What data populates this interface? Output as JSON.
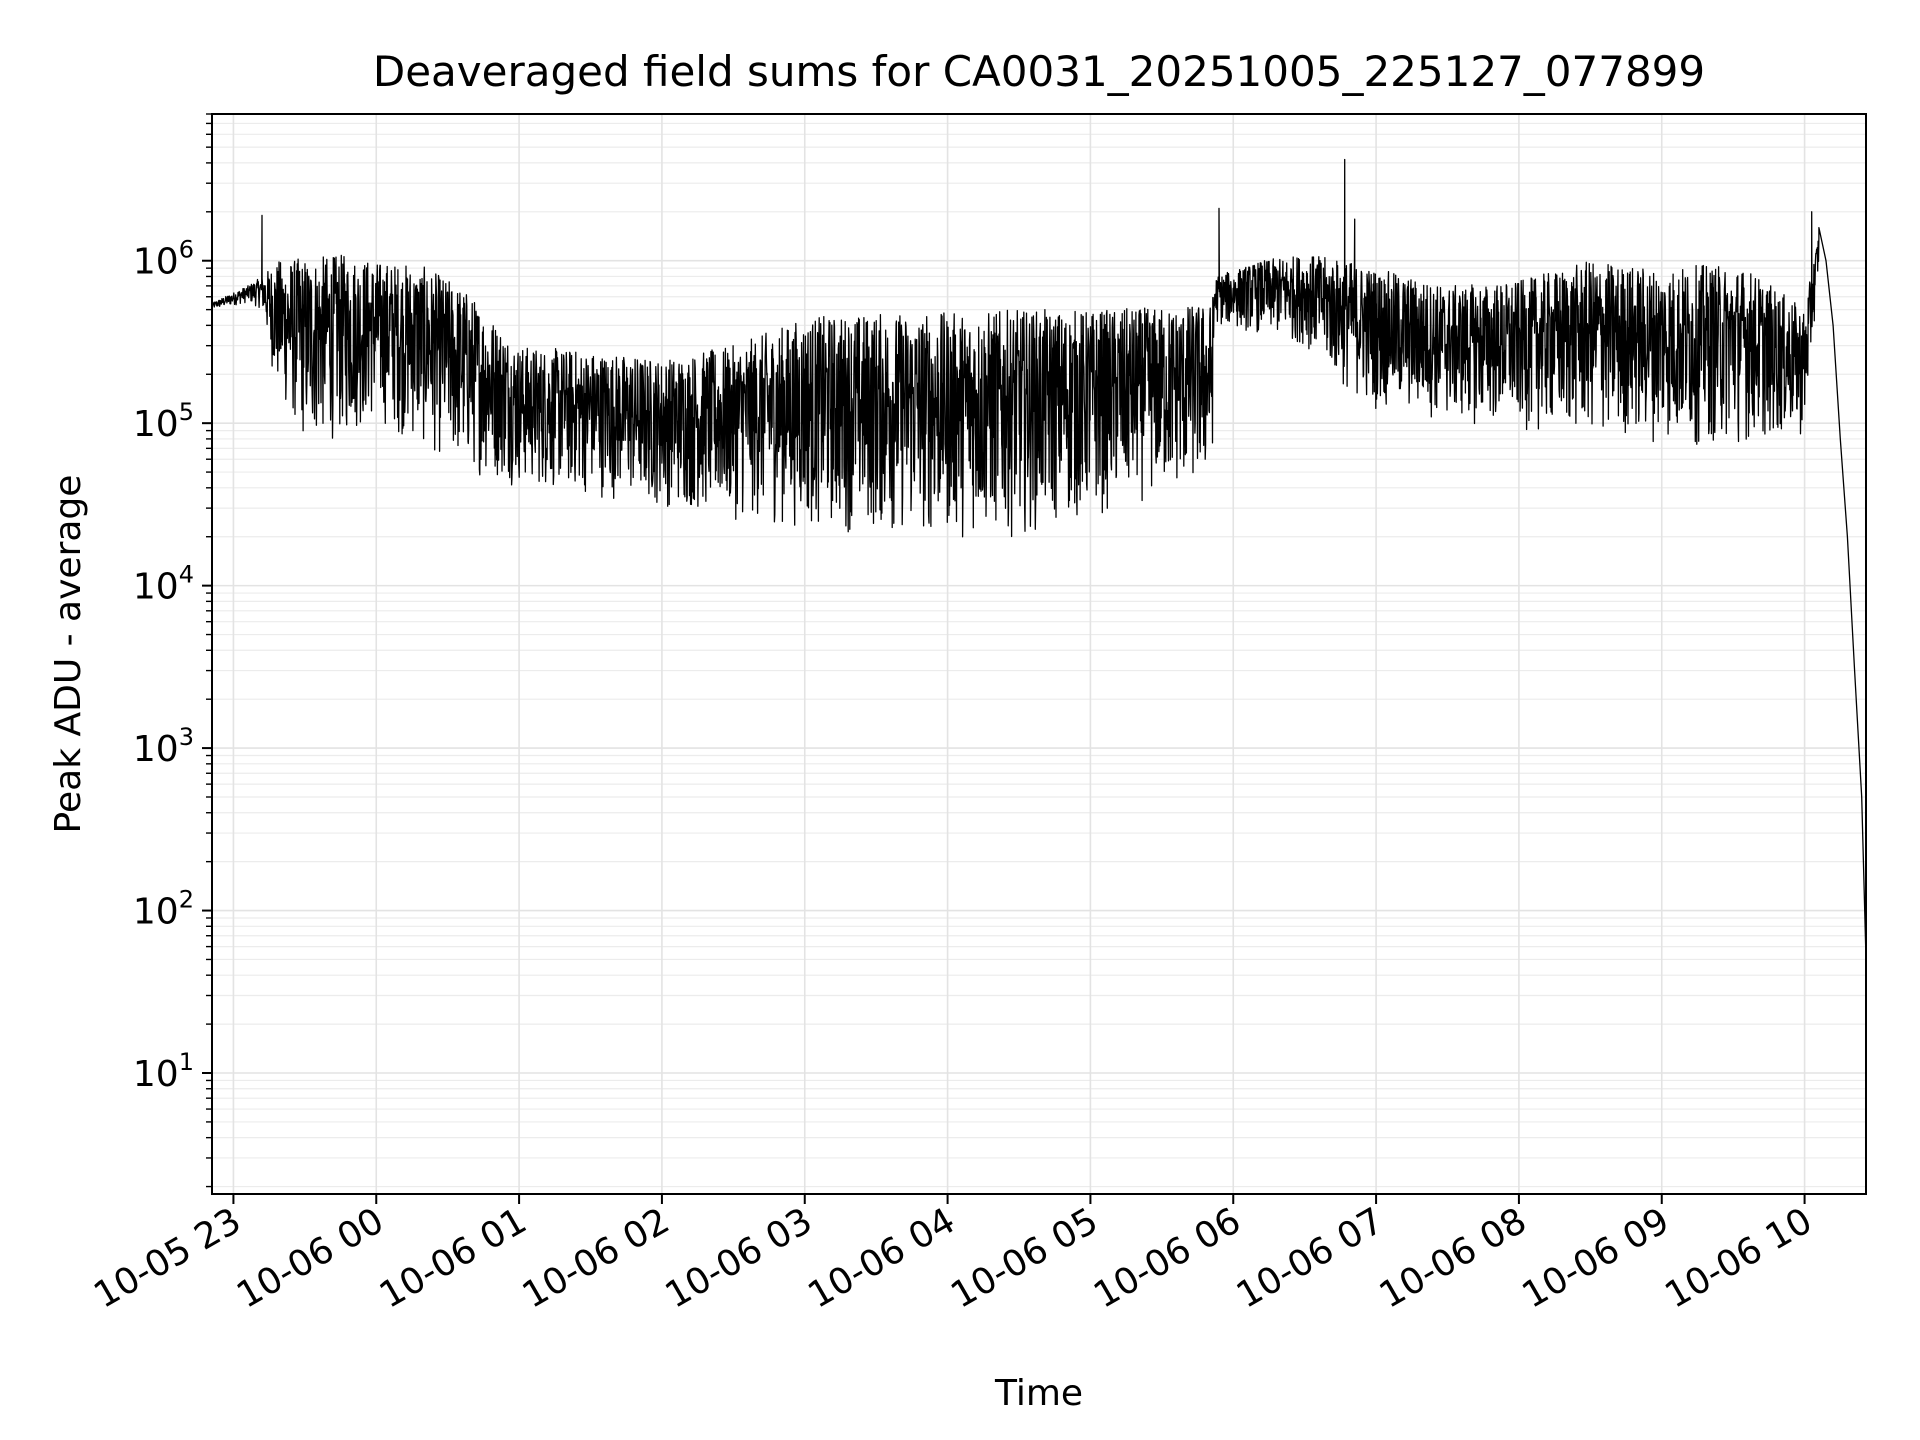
{
  "chart_data": {
    "type": "line",
    "title": "Deaveraged field sums for CA0031_20251005_225127_077899",
    "xlabel": "Time",
    "ylabel": "Peak ADU - average",
    "yscale": "log",
    "ylim": [
      1.8,
      8000000
    ],
    "xlim_hours": [
      -0.15,
      11.43
    ],
    "grid": true,
    "x_tick_labels": [
      "10-05 23",
      "10-06 00",
      "10-06 01",
      "10-06 02",
      "10-06 03",
      "10-06 04",
      "10-06 05",
      "10-06 06",
      "10-06 07",
      "10-06 08",
      "10-06 09",
      "10-06 10"
    ],
    "x_tick_hours": [
      0,
      1,
      2,
      3,
      4,
      5,
      6,
      7,
      8,
      9,
      10,
      11
    ],
    "y_tick_base": "10",
    "y_tick_exponents": [
      "1",
      "2",
      "3",
      "4",
      "5",
      "6"
    ],
    "series": [
      {
        "name": "Peak ADU - average",
        "color": "#000000",
        "envelope_hours": [
          -0.15,
          0.1,
          0.2,
          0.3,
          0.5,
          0.8,
          1.0,
          1.3,
          1.6,
          2.0,
          2.5,
          3.0,
          3.5,
          4.0,
          4.5,
          5.0,
          5.5,
          6.0,
          6.5,
          6.85,
          6.87,
          7.2,
          7.5,
          7.8,
          8.0,
          8.5,
          9.0,
          9.5,
          10.0,
          10.3,
          10.6,
          11.0,
          11.1
        ],
        "envelope_upper": [
          550000,
          700000,
          800000,
          1000000,
          1050000,
          1100000,
          1000000,
          950000,
          700000,
          300000,
          280000,
          250000,
          300000,
          450000,
          480000,
          480000,
          500000,
          500000,
          520000,
          550000,
          800000,
          1000000,
          1100000,
          1000000,
          900000,
          700000,
          750000,
          1000000,
          900000,
          950000,
          900000,
          500000,
          1500000
        ],
        "envelope_lower": [
          500000,
          550000,
          500000,
          150000,
          70000,
          80000,
          100000,
          70000,
          50000,
          40000,
          35000,
          30000,
          25000,
          22000,
          20000,
          19000,
          20000,
          25000,
          35000,
          40000,
          400000,
          350000,
          300000,
          150000,
          120000,
          100000,
          90000,
          80000,
          75000,
          70000,
          75000,
          80000,
          900000
        ],
        "spikes": [
          {
            "hour": 0.2,
            "value": 1900000
          },
          {
            "hour": 6.9,
            "value": 2100000
          },
          {
            "hour": 7.78,
            "value": 4200000
          },
          {
            "hour": 7.85,
            "value": 1800000
          },
          {
            "hour": 11.05,
            "value": 2000000
          }
        ],
        "tail_hours": [
          11.1,
          11.15,
          11.2,
          11.25,
          11.3,
          11.35,
          11.4,
          11.43
        ],
        "tail_values": [
          1600000,
          1000000,
          400000,
          80000,
          20000,
          3000,
          500,
          50
        ]
      }
    ]
  }
}
